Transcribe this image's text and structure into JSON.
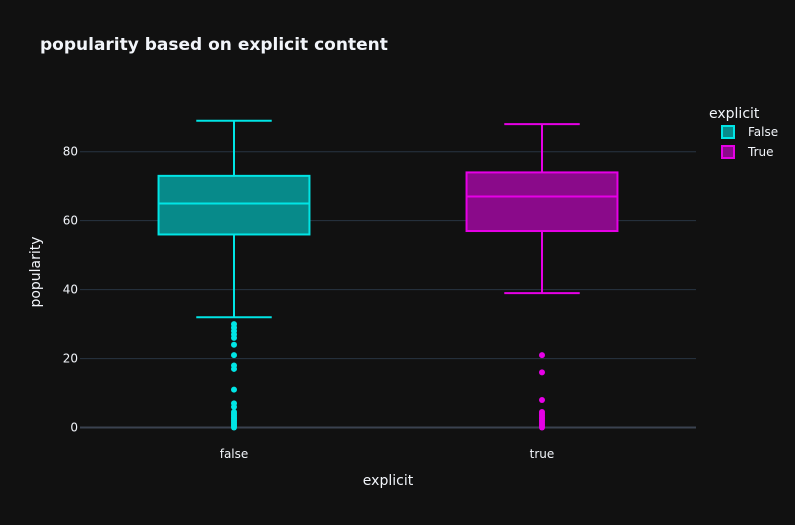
{
  "chart_data": {
    "type": "box",
    "title": "popularity based on explicit content",
    "xlabel": "explicit",
    "ylabel": "popularity",
    "categories": [
      "false",
      "true"
    ],
    "ylim": [
      -1,
      95
    ],
    "yticks": [
      0,
      20,
      40,
      60,
      80
    ],
    "grid": true,
    "legend": {
      "title": "explicit",
      "placement": "top-right",
      "entries": [
        "False",
        "True"
      ]
    },
    "series": [
      {
        "name": "False",
        "category": "false",
        "color": "#00e5e5",
        "fill": "#078a8a",
        "min": 32,
        "q1": 56,
        "median": 65,
        "q3": 73,
        "max": 89,
        "outliers": [
          30,
          29,
          28,
          27,
          26,
          24,
          21,
          18,
          17,
          11,
          7,
          6,
          4.5,
          4,
          3.5,
          3,
          2.5,
          2,
          1.5,
          1,
          0.5,
          0
        ]
      },
      {
        "name": "True",
        "category": "true",
        "color": "#e600e6",
        "fill": "#8a0a8a",
        "min": 39,
        "q1": 57,
        "median": 67,
        "q3": 74,
        "max": 88,
        "outliers": [
          21,
          16,
          8,
          4.5,
          4,
          3.5,
          3,
          2.5,
          2,
          1.5,
          1,
          0.5,
          0
        ]
      }
    ]
  }
}
